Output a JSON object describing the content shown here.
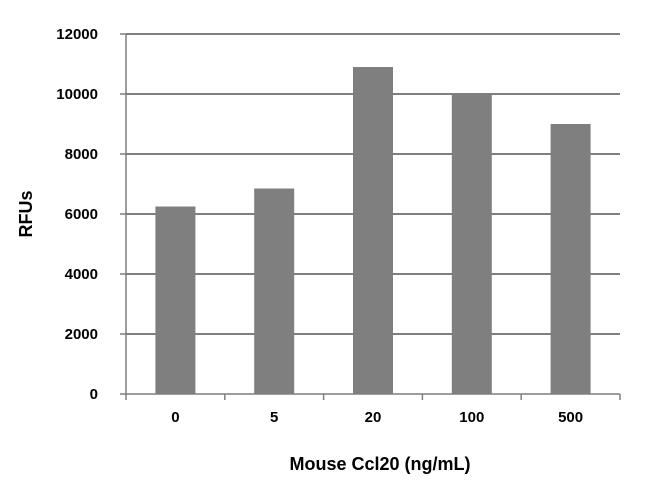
{
  "chart_data": {
    "type": "bar",
    "title": "",
    "categories": [
      "0",
      "5",
      "20",
      "100",
      "500"
    ],
    "values": [
      6250,
      6850,
      10900,
      10000,
      9000
    ],
    "xlabel": "Mouse Ccl20 (ng/mL)",
    "ylabel": "RFUs",
    "ylim": [
      0,
      12000
    ],
    "yticks": [
      "0",
      "2000",
      "4000",
      "6000",
      "8000",
      "10000",
      "12000"
    ],
    "ytick_values": [
      0,
      2000,
      4000,
      6000,
      8000,
      10000,
      12000
    ],
    "grid": "horizontal",
    "legend": "none",
    "colors": {
      "bar": "#7f7f7f",
      "grid": "#555555",
      "axis": "#7f7f7f"
    }
  }
}
